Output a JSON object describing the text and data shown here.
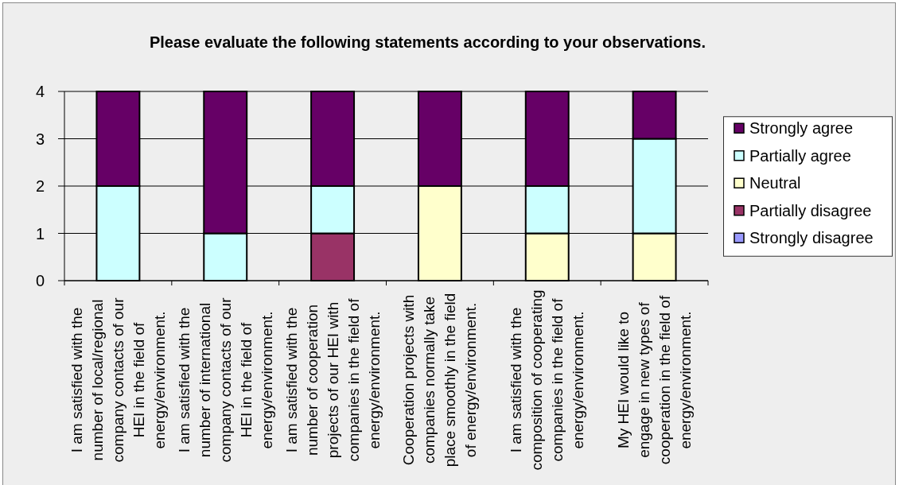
{
  "chart_data": {
    "type": "bar",
    "title": "Please evaluate the following statements according to your observations.",
    "categories": [
      "I am satisfied with the number of local/regional company contacts of our HEI in the field of energy/environment.",
      "I am satisfied with the number of international company contacts of our HEI in the field of energy/environment.",
      "I am satisfied with the number of cooperation projects of our HEI with companies in the field of energy/environment.",
      "Cooperation projects with companies normally take place smoothly in the field of energy/environment.",
      "I am satisfied with the composition of cooperating companies in the field of energy/environment.",
      "My HEI would like to engage in new types of cooperation in the field of energy/environment."
    ],
    "series": [
      {
        "name": "Strongly disagree",
        "color": "#9999ff",
        "values": [
          0,
          0,
          0,
          0,
          0,
          0
        ]
      },
      {
        "name": "Partially disagree",
        "color": "#993366",
        "values": [
          0,
          0,
          1,
          0,
          0,
          0
        ]
      },
      {
        "name": "Neutral",
        "color": "#ffffcc",
        "values": [
          0,
          0,
          0,
          2,
          1,
          1
        ]
      },
      {
        "name": "Partially agree",
        "color": "#ccffff",
        "values": [
          2,
          1,
          1,
          0,
          1,
          2
        ]
      },
      {
        "name": "Strongly agree",
        "color": "#660066",
        "values": [
          2,
          3,
          2,
          2,
          2,
          1
        ]
      }
    ],
    "stacked": true,
    "ylim": [
      0,
      4
    ],
    "yticks": [
      0,
      1,
      2,
      3,
      4
    ],
    "grid": "y",
    "legend": "right"
  }
}
